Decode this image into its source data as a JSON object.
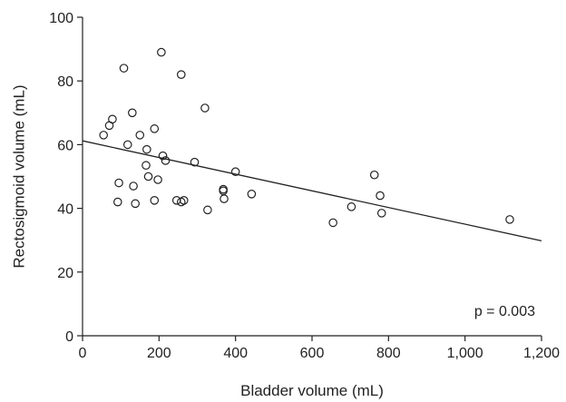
{
  "chart_data": {
    "type": "scatter",
    "xlabel": "Bladder volume (mL)",
    "ylabel": "Rectosigmoid volume (mL)",
    "xlim": [
      0,
      1200
    ],
    "ylim": [
      0,
      100
    ],
    "x_ticks": [
      0,
      200,
      400,
      600,
      800,
      1000,
      1200
    ],
    "x_tick_labels": [
      "0",
      "200",
      "400",
      "600",
      "800",
      "1,000",
      "1,200"
    ],
    "y_ticks": [
      0,
      20,
      40,
      60,
      80,
      100
    ],
    "y_tick_labels": [
      "0",
      "20",
      "40",
      "60",
      "80",
      "100"
    ],
    "grid": false,
    "annotation": "p = 0.003",
    "points": {
      "x": [
        55,
        70,
        78,
        92,
        95,
        108,
        118,
        130,
        133,
        138,
        150,
        166,
        168,
        172,
        188,
        188,
        197,
        206,
        210,
        217,
        246,
        258,
        258,
        265,
        293,
        320,
        327,
        368,
        368,
        370,
        400,
        442,
        655,
        703,
        763,
        778,
        782,
        1117
      ],
      "y": [
        63,
        66,
        68,
        42,
        48,
        84,
        60,
        70,
        47,
        41.5,
        63,
        53.5,
        58.5,
        50,
        65,
        42.5,
        49,
        89,
        56.5,
        55,
        42.5,
        82,
        42,
        42.5,
        54.5,
        71.5,
        39.5,
        46,
        45.5,
        43,
        51.5,
        44.5,
        35.5,
        40.5,
        50.5,
        44,
        38.5,
        36.5
      ]
    },
    "trendline": {
      "x": [
        0,
        1200
      ],
      "y": [
        61.2,
        29.8
      ]
    }
  }
}
